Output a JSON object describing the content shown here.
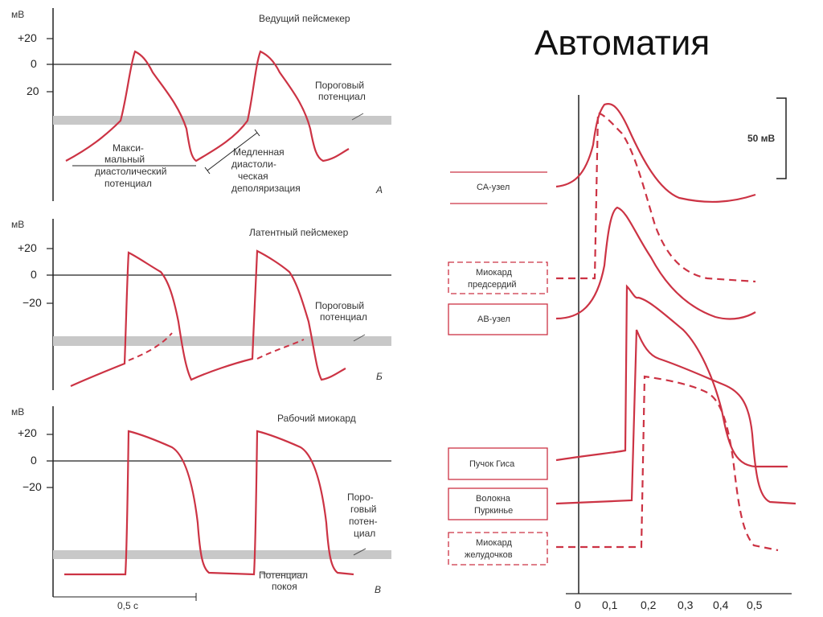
{
  "title": "Автоматия",
  "colors": {
    "trace": "#cc3344",
    "threshold_band": "#c8c8c8",
    "axis": "#222222"
  },
  "panels": [
    {
      "unit": "мВ",
      "ticks": [
        "+20",
        "0",
        "20"
      ],
      "heading": "Ведущий пейсмекер",
      "threshold_label": [
        "Пороговый",
        "потенциал"
      ],
      "note_left": [
        "Макси-",
        "мальный",
        "диастолический",
        "потенциал"
      ],
      "note_right": [
        "Медленная",
        "диастоли-",
        "ческая",
        "деполяризация"
      ],
      "letter": "А"
    },
    {
      "unit": "мВ",
      "ticks": [
        "+20",
        "0",
        "−20"
      ],
      "heading": "Латентный пейсмекер",
      "threshold_label": [
        "Пороговый",
        "потенциал"
      ],
      "letter": "Б"
    },
    {
      "unit": "мВ",
      "ticks": [
        "+20",
        "0",
        "−20"
      ],
      "heading": "Рабочий миокард",
      "threshold_label": [
        "Поро-",
        "говый",
        "потен-",
        "циал"
      ],
      "rest_label": [
        "Потенциал",
        "покоя"
      ],
      "letter": "В",
      "time_scale": "0,5 с"
    }
  ],
  "right": {
    "scale_label": "50 мВ",
    "x_ticks": [
      "0",
      "0,1",
      "0,2",
      "0,3",
      "0,4",
      "0,5"
    ],
    "labels": [
      {
        "text": [
          "СА-узел"
        ],
        "dashed": false
      },
      {
        "text": [
          "Миокард",
          "предсердий"
        ],
        "dashed": true
      },
      {
        "text": [
          "АВ-узел"
        ],
        "dashed": false
      },
      {
        "text": [
          "Пучок Гиса"
        ],
        "dashed": false
      },
      {
        "text": [
          "Волокна",
          "Пуркинье"
        ],
        "dashed": false
      },
      {
        "text": [
          "Миокард",
          "желудочков"
        ],
        "dashed": true
      }
    ]
  }
}
